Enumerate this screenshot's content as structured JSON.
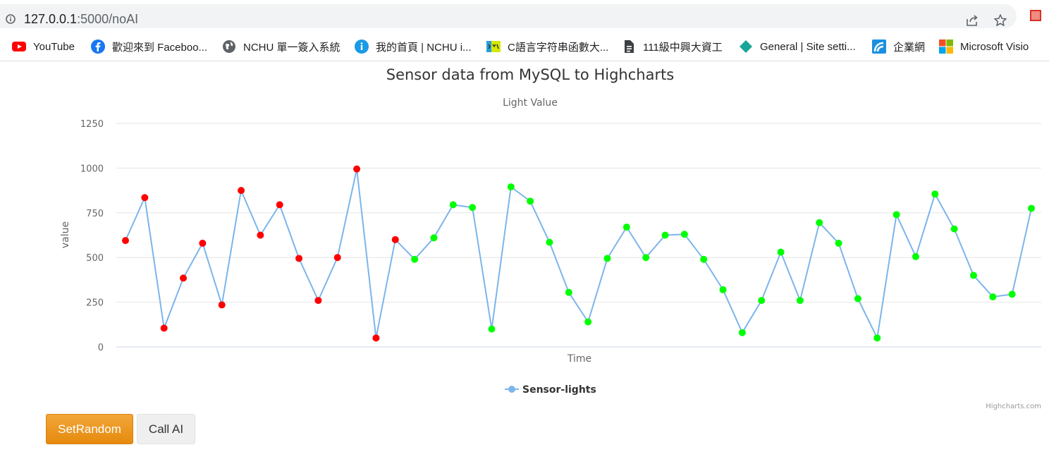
{
  "browser": {
    "url_host": "127.0.0.1",
    "url_rest": ":5000/noAI",
    "bookmarks": [
      {
        "label": "YouTube",
        "icon": "youtube-icon"
      },
      {
        "label": "歡迎來到 Faceboo...",
        "icon": "facebook-icon"
      },
      {
        "label": "NCHU 單一簽入系統",
        "icon": "globe-icon"
      },
      {
        "label": "我的首頁 | NCHU i...",
        "icon": "info-circle-icon"
      },
      {
        "label": "C語言字符串函數大...",
        "icon": "site-logo-icon"
      },
      {
        "label": "111級中興大資工",
        "icon": "document-icon"
      },
      {
        "label": "General | Site setti...",
        "icon": "diamond-icon"
      },
      {
        "label": "企業網",
        "icon": "wifi-logo-icon"
      },
      {
        "label": "Microsoft Visio",
        "icon": "microsoft-icon"
      }
    ]
  },
  "chart_data": {
    "type": "line",
    "title": "Sensor data from MySQL to Highcharts",
    "subtitle": "Light Value",
    "xlabel": "Time",
    "ylabel": "value",
    "ylim": [
      0,
      1250
    ],
    "yticks": [
      0,
      250,
      500,
      750,
      1000,
      1250
    ],
    "grid": true,
    "legend_position": "bottom-center",
    "series": [
      {
        "name": "Sensor-lights",
        "color": "#7cb5ec",
        "values": [
          595,
          835,
          105,
          385,
          580,
          235,
          875,
          625,
          795,
          495,
          260,
          500,
          995,
          50,
          600,
          490,
          610,
          795,
          780,
          100,
          895,
          815,
          585,
          305,
          140,
          495,
          670,
          500,
          625,
          630,
          490,
          320,
          80,
          260,
          530,
          260,
          695,
          580,
          270,
          50,
          740,
          505,
          855,
          660,
          400,
          280,
          295,
          775
        ],
        "marker_colors": [
          "#ff0000",
          "#ff0000",
          "#ff0000",
          "#ff0000",
          "#ff0000",
          "#ff0000",
          "#ff0000",
          "#ff0000",
          "#ff0000",
          "#ff0000",
          "#ff0000",
          "#ff0000",
          "#ff0000",
          "#ff0000",
          "#ff0000",
          "#00ff00",
          "#00ff00",
          "#00ff00",
          "#00ff00",
          "#00ff00",
          "#00ff00",
          "#00ff00",
          "#00ff00",
          "#00ff00",
          "#00ff00",
          "#00ff00",
          "#00ff00",
          "#00ff00",
          "#00ff00",
          "#00ff00",
          "#00ff00",
          "#00ff00",
          "#00ff00",
          "#00ff00",
          "#00ff00",
          "#00ff00",
          "#00ff00",
          "#00ff00",
          "#00ff00",
          "#00ff00",
          "#00ff00",
          "#00ff00",
          "#00ff00",
          "#00ff00",
          "#00ff00",
          "#00ff00",
          "#00ff00",
          "#00ff00"
        ]
      }
    ]
  },
  "credits": "Highcharts.com",
  "buttons": {
    "set_random": "SetRandom",
    "call_ai": "Call AI"
  }
}
